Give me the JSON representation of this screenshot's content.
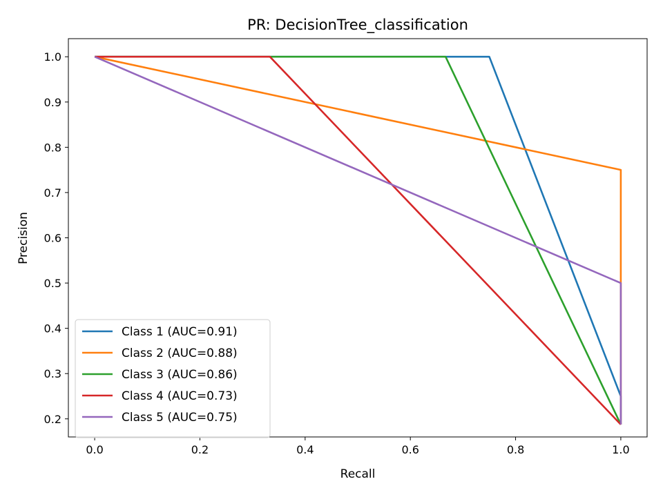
{
  "chart_data": {
    "type": "line",
    "title": "PR: DecisionTree_classification",
    "xlabel": "Recall",
    "ylabel": "Precision",
    "xlim": [
      -0.05,
      1.05
    ],
    "ylim": [
      0.16,
      1.04
    ],
    "xticks": [
      "0.0",
      "0.2",
      "0.4",
      "0.6",
      "0.8",
      "1.0"
    ],
    "yticks": [
      "0.2",
      "0.3",
      "0.4",
      "0.5",
      "0.6",
      "0.7",
      "0.8",
      "0.9",
      "1.0"
    ],
    "grid": false,
    "legend_position": "lower-left",
    "series": [
      {
        "name": "Class 1 (AUC=0.91)",
        "color": "#1f77b4",
        "x": [
          0.0,
          0.75,
          1.0,
          1.0
        ],
        "y": [
          1.0,
          1.0,
          0.25,
          0.1875
        ]
      },
      {
        "name": "Class 2 (AUC=0.88)",
        "color": "#ff7f0e",
        "x": [
          0.0,
          1.0,
          1.0
        ],
        "y": [
          1.0,
          0.75,
          0.1875
        ]
      },
      {
        "name": "Class 3 (AUC=0.86)",
        "color": "#2ca02c",
        "x": [
          0.0,
          0.667,
          1.0
        ],
        "y": [
          1.0,
          1.0,
          0.1875
        ]
      },
      {
        "name": "Class 4 (AUC=0.73)",
        "color": "#d62728",
        "x": [
          0.0,
          0.333,
          1.0
        ],
        "y": [
          1.0,
          1.0,
          0.1875
        ]
      },
      {
        "name": "Class 5 (AUC=0.75)",
        "color": "#9467bd",
        "x": [
          0.0,
          1.0,
          1.0
        ],
        "y": [
          1.0,
          0.5,
          0.1875
        ]
      }
    ]
  }
}
